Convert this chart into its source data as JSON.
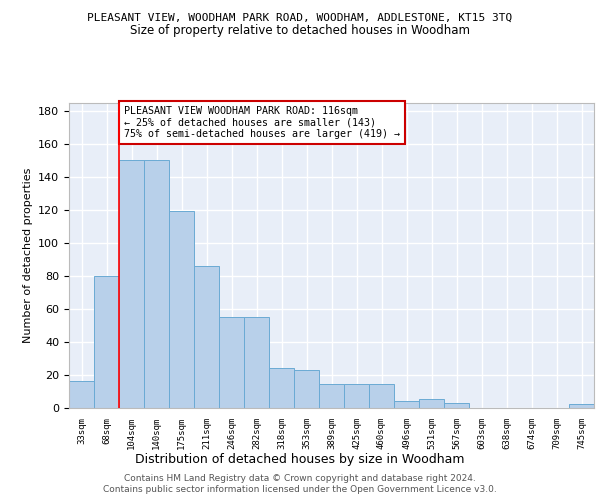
{
  "title": "PLEASANT VIEW, WOODHAM PARK ROAD, WOODHAM, ADDLESTONE, KT15 3TQ",
  "subtitle": "Size of property relative to detached houses in Woodham",
  "xlabel": "Distribution of detached houses by size in Woodham",
  "ylabel": "Number of detached properties",
  "bar_color": "#b8d0ea",
  "bar_edge_color": "#6aaad4",
  "background_color": "#e8eef8",
  "grid_color": "#ffffff",
  "categories": [
    "33sqm",
    "68sqm",
    "104sqm",
    "140sqm",
    "175sqm",
    "211sqm",
    "246sqm",
    "282sqm",
    "318sqm",
    "353sqm",
    "389sqm",
    "425sqm",
    "460sqm",
    "496sqm",
    "531sqm",
    "567sqm",
    "603sqm",
    "638sqm",
    "674sqm",
    "709sqm",
    "745sqm"
  ],
  "values": [
    16,
    80,
    150,
    150,
    119,
    86,
    55,
    55,
    24,
    23,
    14,
    14,
    14,
    4,
    5,
    3,
    0,
    0,
    0,
    0,
    2
  ],
  "red_line_index": 2,
  "annotation_text": "PLEASANT VIEW WOODHAM PARK ROAD: 116sqm\n← 25% of detached houses are smaller (143)\n75% of semi-detached houses are larger (419) →",
  "annotation_box_color": "#ffffff",
  "annotation_box_edge": "#cc0000",
  "ylim": [
    0,
    185
  ],
  "yticks": [
    0,
    20,
    40,
    60,
    80,
    100,
    120,
    140,
    160,
    180
  ],
  "footnote1": "Contains HM Land Registry data © Crown copyright and database right 2024.",
  "footnote2": "Contains public sector information licensed under the Open Government Licence v3.0."
}
